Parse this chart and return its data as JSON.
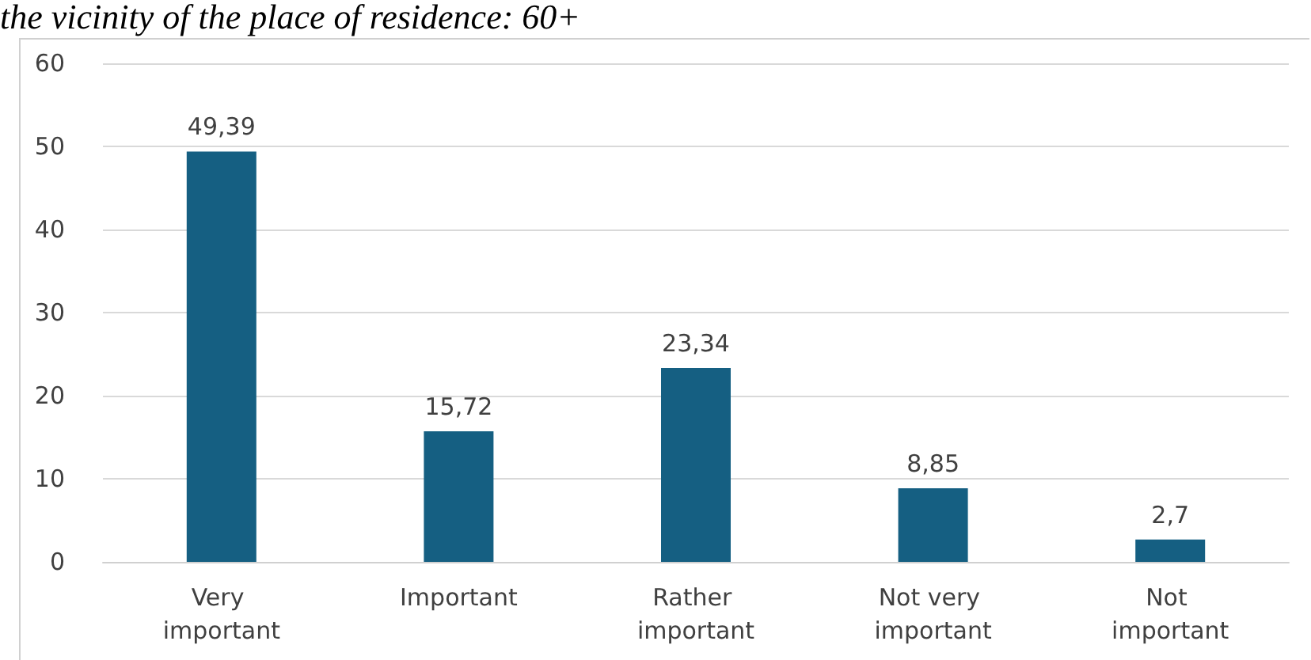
{
  "chart_data": {
    "type": "bar",
    "title": "the vicinity of the place of residence: 60+",
    "categories": [
      "Very important",
      "Important",
      "Rather important",
      "Not very important",
      "Not important"
    ],
    "values": [
      49.39,
      15.72,
      23.34,
      8.85,
      2.7
    ],
    "value_labels": [
      "49,39",
      "15,72",
      "23,34",
      "8,85",
      "2,7"
    ],
    "color": "#155f82",
    "ylim": [
      0,
      60
    ],
    "yticks": [
      0,
      10,
      20,
      30,
      40,
      50,
      60
    ],
    "grid": "y"
  }
}
